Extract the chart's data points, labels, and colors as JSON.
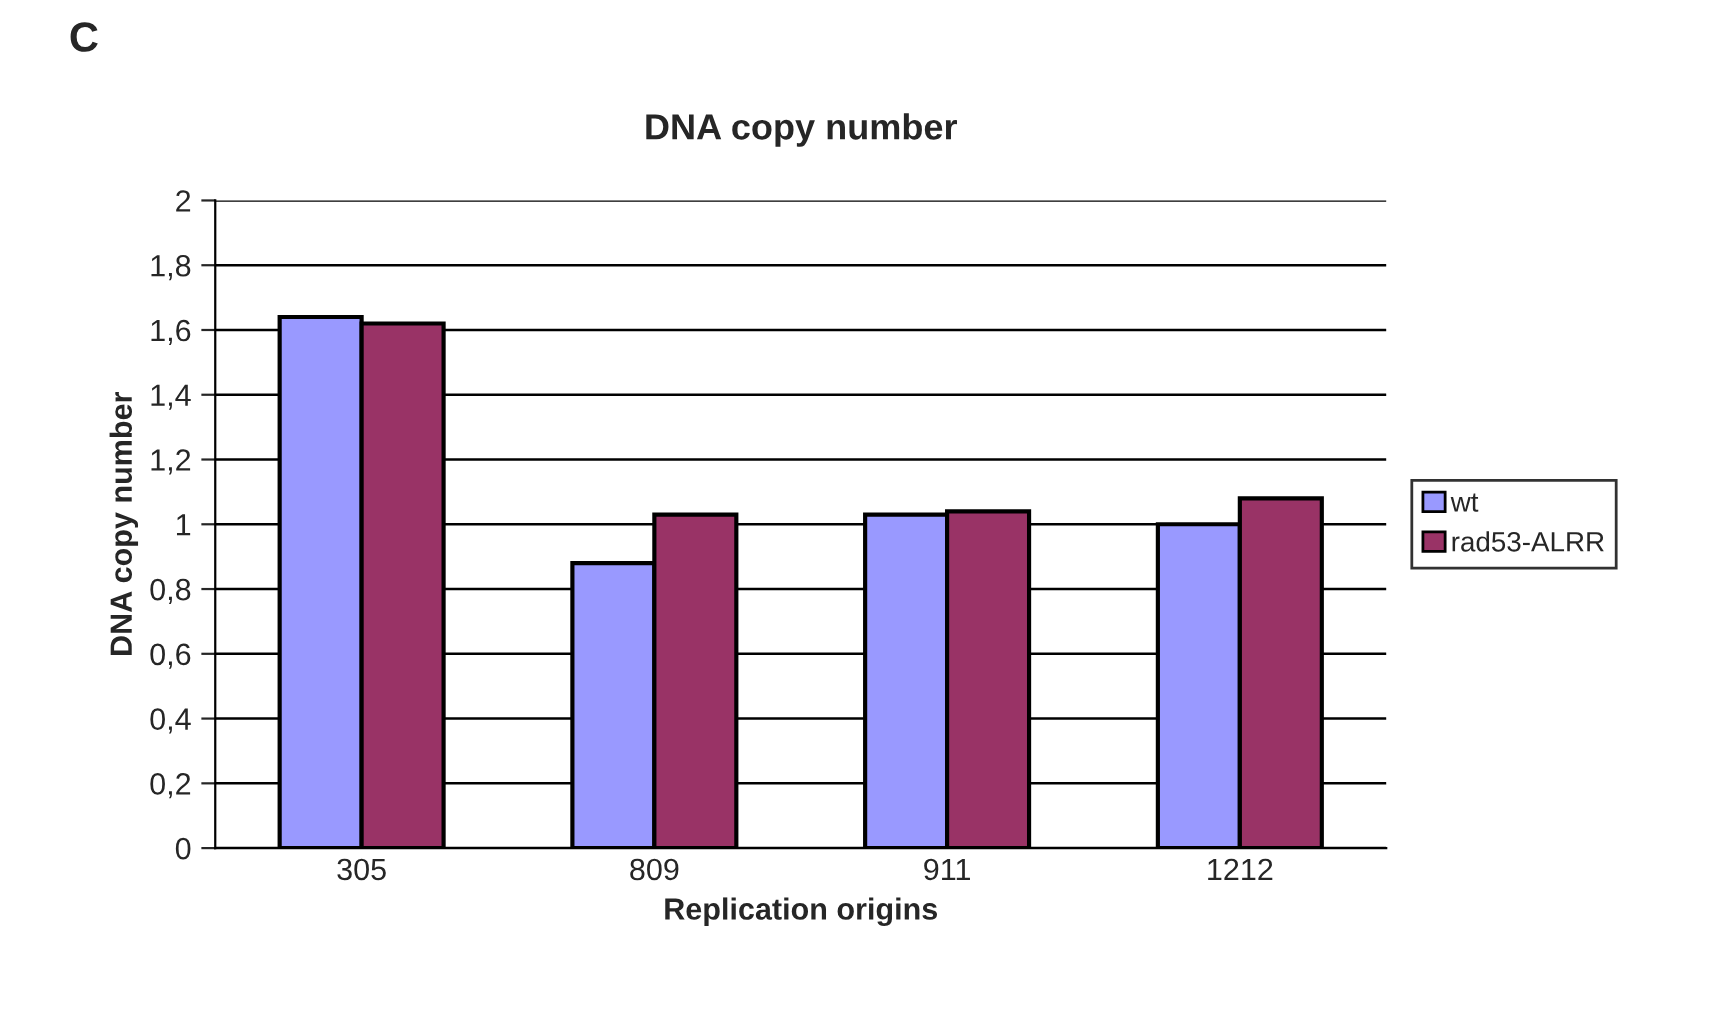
{
  "chart_data": {
    "type": "bar",
    "title": "DNA copy number",
    "xlabel": "Replication origins",
    "ylabel": "DNA copy number",
    "annotations": [
      "C"
    ],
    "categories": [
      "305",
      "809",
      "911",
      "1212"
    ],
    "series": [
      {
        "name": "wt",
        "color": "#9999ff",
        "values": [
          1.64,
          0.88,
          1.03,
          1.0
        ]
      },
      {
        "name": "rad53-ALRR",
        "color": "#993366",
        "values": [
          1.62,
          1.03,
          1.04,
          1.08
        ]
      }
    ],
    "ylim": [
      0,
      2
    ],
    "yticks": [
      0,
      {
        "value": 0.2,
        "label": "0,2"
      },
      {
        "value": 0.4,
        "label": "0,4"
      },
      {
        "value": 0.6,
        "label": "0,6"
      },
      {
        "value": 0.8,
        "label": "0,8"
      },
      1,
      {
        "value": 1.2,
        "label": "1,2"
      },
      {
        "value": 1.4,
        "label": "1,4"
      },
      {
        "value": 1.6,
        "label": "1,6"
      },
      {
        "value": 1.8,
        "label": "1,8"
      },
      2
    ],
    "grid": "y",
    "legend": "right"
  }
}
